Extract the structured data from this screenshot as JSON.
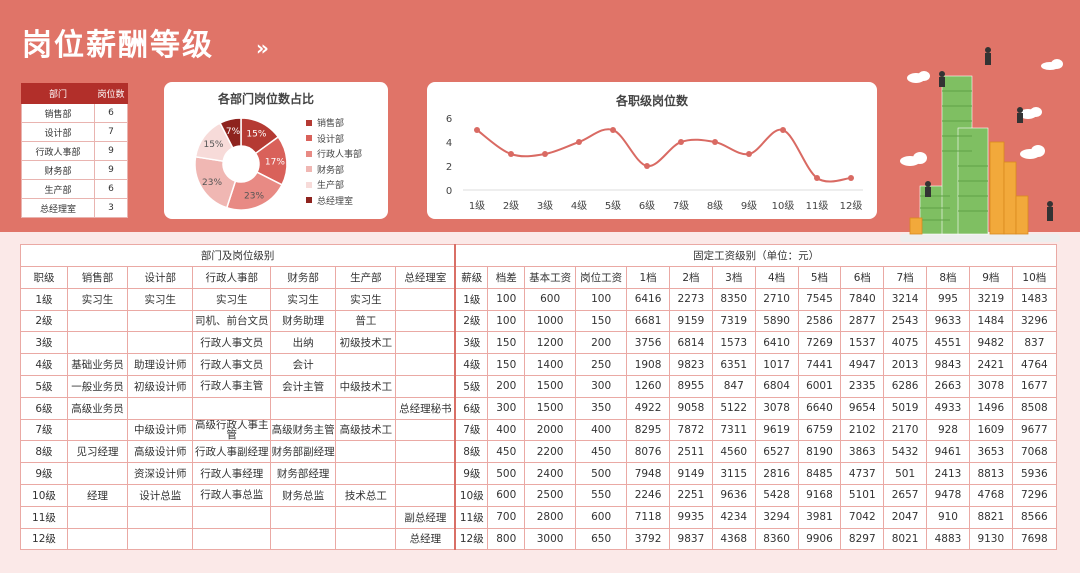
{
  "title": "岗位薪酬等级",
  "title_arrows": "»",
  "dept_table": {
    "headers": [
      "部门",
      "岗位数"
    ],
    "rows": [
      [
        "销售部",
        "6"
      ],
      [
        "设计部",
        "7"
      ],
      [
        "行政人事部",
        "9"
      ],
      [
        "财务部",
        "9"
      ],
      [
        "生产部",
        "6"
      ],
      [
        "总经理室",
        "3"
      ]
    ]
  },
  "colors": {
    "banner": "#e07468",
    "dark_red": "#b22f2a",
    "pie": [
      "#b53a33",
      "#d9615a",
      "#e88a84",
      "#f0b7b3",
      "#f7dbd9",
      "#8e231e"
    ],
    "line": "#d96a63"
  },
  "chart_data": [
    {
      "type": "pie",
      "title": "各部门岗位数占比",
      "categories": [
        "销售部",
        "设计部",
        "行政人事部",
        "财务部",
        "生产部",
        "总经理室"
      ],
      "values": [
        6,
        7,
        9,
        9,
        6,
        3
      ],
      "labels": [
        "15%",
        "17%",
        "23%",
        "23%",
        "15%",
        "7%"
      ],
      "legend": "right"
    },
    {
      "type": "line",
      "title": "各职级岗位数",
      "categories": [
        "1级",
        "2级",
        "3级",
        "4级",
        "5级",
        "6级",
        "7级",
        "8级",
        "9级",
        "10级",
        "11级",
        "12级"
      ],
      "values": [
        5,
        3,
        3,
        4,
        5,
        2,
        4,
        4,
        3,
        5,
        1,
        1
      ],
      "yticks": [
        "0",
        "2",
        "4",
        "6"
      ],
      "ylim": [
        0,
        6
      ],
      "grid": false
    }
  ],
  "main_table": {
    "group_left": "部门及岗位级别",
    "group_right": "固定工资级别（单位：元）",
    "headers": [
      "职级",
      "销售部",
      "设计部",
      "行政人事部",
      "财务部",
      "生产部",
      "总经理室",
      "薪级",
      "档差",
      "基本工资",
      "岗位工资",
      "1档",
      "2档",
      "3档",
      "4档",
      "5档",
      "6档",
      "7档",
      "8档",
      "9档",
      "10档"
    ],
    "rows": [
      [
        "1级",
        "实习生",
        "实习生",
        "实习生",
        "实习生",
        "实习生",
        "",
        "1级",
        "100",
        "600",
        "100",
        "6416",
        "2273",
        "8350",
        "2710",
        "7545",
        "7840",
        "3214",
        "995",
        "3219",
        "1483"
      ],
      [
        "2级",
        "",
        "",
        "司机、前台文员",
        "财务助理",
        "普工",
        "",
        "2级",
        "100",
        "1000",
        "150",
        "6681",
        "9159",
        "7319",
        "5890",
        "2586",
        "2877",
        "2543",
        "9633",
        "1484",
        "3296"
      ],
      [
        "3级",
        "",
        "",
        "行政人事文员",
        "出纳",
        "初级技术工",
        "",
        "3级",
        "150",
        "1200",
        "200",
        "3756",
        "6814",
        "1573",
        "6410",
        "7269",
        "1537",
        "4075",
        "4551",
        "9482",
        "837"
      ],
      [
        "4级",
        "基础业务员",
        "助理设计师",
        "行政人事文员",
        "会计",
        "",
        "",
        "4级",
        "150",
        "1400",
        "250",
        "1908",
        "9823",
        "6351",
        "1017",
        "7441",
        "4947",
        "2013",
        "9843",
        "2421",
        "4764"
      ],
      [
        "5级",
        "一般业务员",
        "初级设计师",
        "行政人事主管",
        "会计主管",
        "中级技术工",
        "",
        "5级",
        "200",
        "1500",
        "300",
        "1260",
        "8955",
        "847",
        "6804",
        "6001",
        "2335",
        "6286",
        "2663",
        "3078",
        "1677"
      ],
      [
        "6级",
        "高级业务员",
        "",
        "",
        "",
        "",
        "总经理秘书",
        "6级",
        "300",
        "1500",
        "350",
        "4922",
        "9058",
        "5122",
        "3078",
        "6640",
        "9654",
        "5019",
        "4933",
        "1496",
        "8508"
      ],
      [
        "7级",
        "",
        "中级设计师",
        "高级行政人事主管",
        "高级财务主管",
        "高级技术工",
        "",
        "7级",
        "400",
        "2000",
        "400",
        "8295",
        "7872",
        "7311",
        "9619",
        "6759",
        "2102",
        "2170",
        "928",
        "1609",
        "9677"
      ],
      [
        "8级",
        "见习经理",
        "高级设计师",
        "行政人事副经理",
        "财务部副经理",
        "",
        "",
        "8级",
        "450",
        "2200",
        "450",
        "8076",
        "2511",
        "4560",
        "6527",
        "8190",
        "3863",
        "5432",
        "9461",
        "3653",
        "7068"
      ],
      [
        "9级",
        "",
        "资深设计师",
        "行政人事经理",
        "财务部经理",
        "",
        "",
        "9级",
        "500",
        "2400",
        "500",
        "7948",
        "9149",
        "3115",
        "2816",
        "8485",
        "4737",
        "501",
        "2413",
        "8813",
        "5936"
      ],
      [
        "10级",
        "经理",
        "设计总监",
        "行政人事总监",
        "财务总监",
        "技术总工",
        "",
        "10级",
        "600",
        "2500",
        "550",
        "2246",
        "2251",
        "9636",
        "5428",
        "9168",
        "5101",
        "2657",
        "9478",
        "4768",
        "7296"
      ],
      [
        "11级",
        "",
        "",
        "",
        "",
        "",
        "副总经理",
        "11级",
        "700",
        "2800",
        "600",
        "7118",
        "9935",
        "4234",
        "3294",
        "3981",
        "7042",
        "2047",
        "910",
        "8821",
        "8566"
      ],
      [
        "12级",
        "",
        "",
        "",
        "",
        "",
        "总经理",
        "12级",
        "800",
        "3000",
        "650",
        "3792",
        "9837",
        "4368",
        "8360",
        "9906",
        "8297",
        "8021",
        "4883",
        "9130",
        "7698"
      ]
    ]
  }
}
